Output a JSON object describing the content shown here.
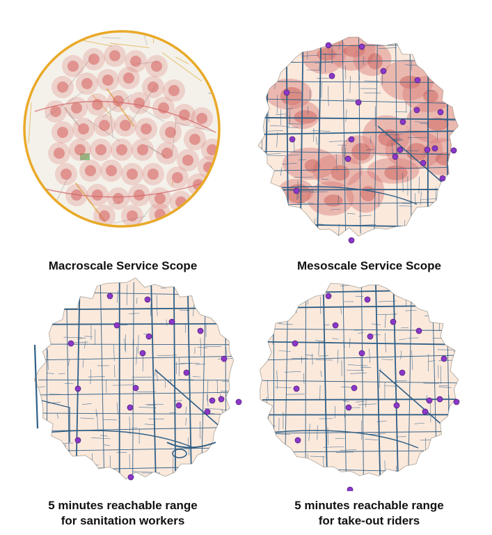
{
  "captions": {
    "macro": "Macroscale Service Scope",
    "meso": "Mesoscale Service Scope",
    "sanitation_line1": "5 minutes reachable range",
    "sanitation_line2": "for sanitation workers",
    "takeout_line1": "5 minutes reachable range",
    "takeout_line2": "for take-out riders"
  },
  "colors": {
    "circle_border": "#e9a928",
    "base_map": "#f4f1ea",
    "region_fill": "#fbe9dc",
    "region_outline": "#b9b2a8",
    "road": "#2f5f86",
    "hotspot": "#d5605f",
    "service_point": "#8a38c9",
    "meso_heat": "#d87d79"
  },
  "icons": {
    "service_point": "purple-dot-icon"
  }
}
